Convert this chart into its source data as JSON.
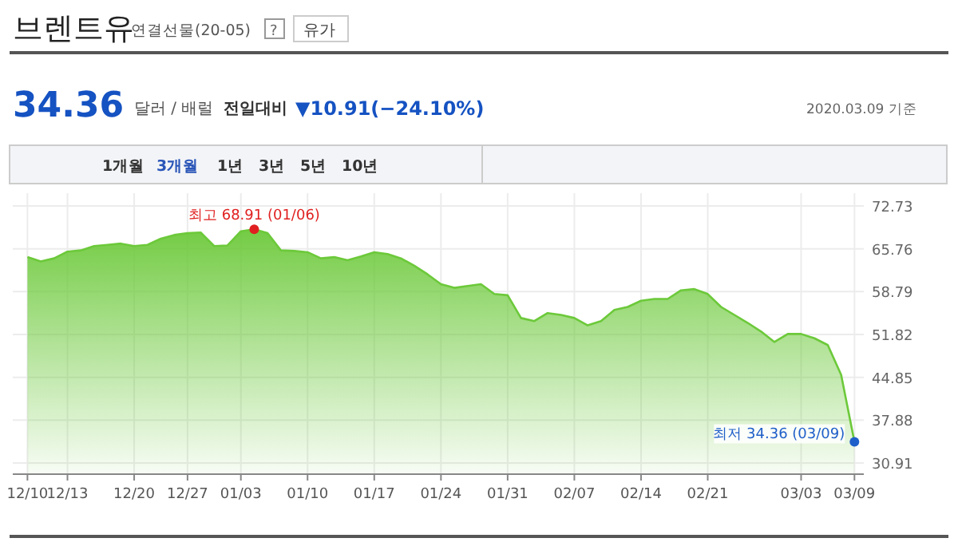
{
  "chart_data": {
    "type": "area",
    "title": "브렌트유",
    "subtitle": "연결선물(20-05)",
    "categories": [
      "12/10",
      null,
      null,
      "12/13",
      null,
      null,
      null,
      null,
      "12/20",
      null,
      null,
      null,
      "12/27",
      null,
      null,
      null,
      "01/03",
      null,
      null,
      null,
      null,
      "01/10",
      null,
      null,
      null,
      null,
      "01/17",
      null,
      null,
      null,
      null,
      "01/24",
      null,
      null,
      null,
      null,
      "01/31",
      null,
      null,
      null,
      null,
      "02/07",
      null,
      null,
      null,
      null,
      "02/14",
      null,
      null,
      null,
      null,
      "02/21",
      null,
      null,
      null,
      null,
      null,
      null,
      "03/03",
      null,
      null,
      null,
      "03/09"
    ],
    "series": [
      {
        "color": "#6cc93a",
        "values": [
          64.4,
          63.7,
          64.2,
          65.3,
          65.5,
          66.2,
          66.4,
          66.6,
          66.2,
          66.4,
          67.4,
          68.0,
          68.3,
          68.4,
          66.2,
          66.3,
          68.6,
          68.91,
          68.3,
          65.5,
          65.4,
          65.2,
          64.2,
          64.4,
          63.9,
          64.5,
          65.2,
          64.9,
          64.2,
          63.0,
          61.6,
          60.0,
          59.4,
          59.7,
          60.0,
          58.4,
          58.2,
          54.5,
          54.0,
          55.3,
          55.0,
          54.5,
          53.3,
          54.0,
          55.8,
          56.3,
          57.3,
          57.6,
          57.6,
          59.0,
          59.2,
          58.4,
          56.3,
          55.0,
          53.7,
          52.3,
          50.6,
          51.9,
          51.9,
          51.2,
          50.1,
          45.27,
          34.36
        ]
      }
    ],
    "ylim": [
      29.1,
      74.8
    ],
    "yticks": [
      30.91,
      37.88,
      44.85,
      51.82,
      58.79,
      65.76,
      72.73
    ],
    "grid": true,
    "annotations": [
      "?",
      "유가",
      "34.36",
      "달러 / 배럴",
      "전일대비",
      "▼10.91(−24.10%)",
      "2020.03.09 기준",
      "1개월",
      "3개월",
      "1년",
      "3년",
      "5년",
      "10년",
      "최고 68.91 (01/06)",
      "최저 34.36 (03/09)"
    ]
  }
}
